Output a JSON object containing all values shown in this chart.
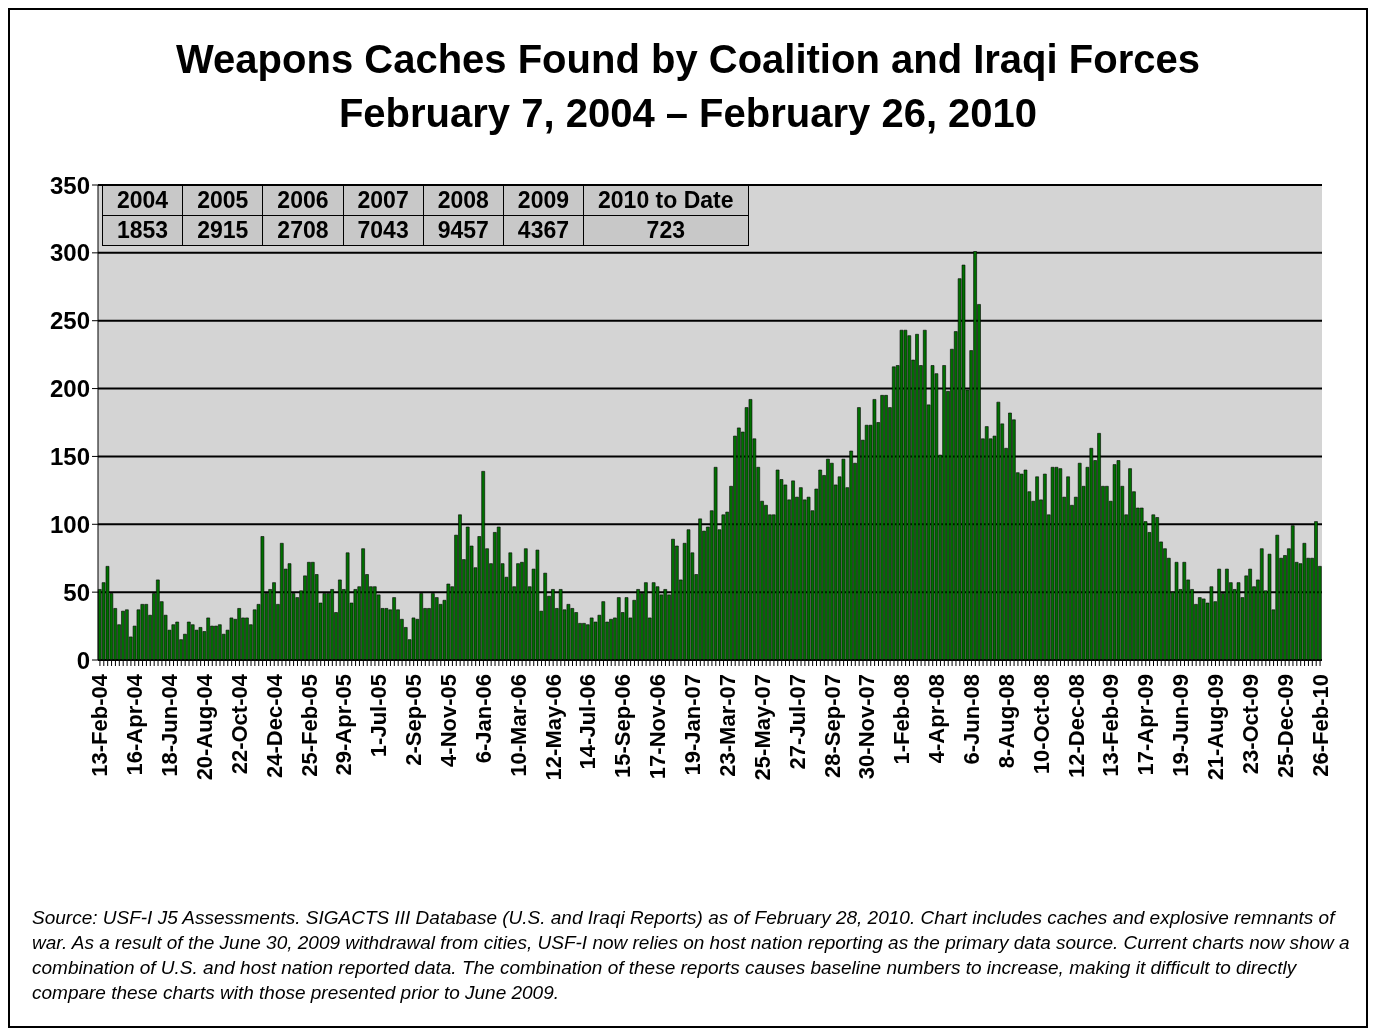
{
  "chart_data": {
    "type": "bar",
    "title": "Weapons Caches Found by Coalition and Iraqi Forces",
    "subtitle": "February 7, 2004 – February 26, 2010",
    "categories": [
      "13-Feb-04",
      null,
      null,
      null,
      null,
      null,
      null,
      null,
      null,
      "16-Apr-04",
      null,
      null,
      null,
      null,
      null,
      null,
      null,
      null,
      "18-Jun-04",
      null,
      null,
      null,
      null,
      null,
      null,
      null,
      null,
      "20-Aug-04",
      null,
      null,
      null,
      null,
      null,
      null,
      null,
      null,
      "22-Oct-04",
      null,
      null,
      null,
      null,
      null,
      null,
      null,
      null,
      "24-Dec-04",
      null,
      null,
      null,
      null,
      null,
      null,
      null,
      null,
      "25-Feb-05",
      null,
      null,
      null,
      null,
      null,
      null,
      null,
      null,
      "29-Apr-05",
      null,
      null,
      null,
      null,
      null,
      null,
      null,
      null,
      "1-Jul-05",
      null,
      null,
      null,
      null,
      null,
      null,
      null,
      null,
      "2-Sep-05",
      null,
      null,
      null,
      null,
      null,
      null,
      null,
      null,
      "4-Nov-05",
      null,
      null,
      null,
      null,
      null,
      null,
      null,
      null,
      "6-Jan-06",
      null,
      null,
      null,
      null,
      null,
      null,
      null,
      null,
      "10-Mar-06",
      null,
      null,
      null,
      null,
      null,
      null,
      null,
      null,
      "12-May-06",
      null,
      null,
      null,
      null,
      null,
      null,
      null,
      null,
      "14-Jul-06",
      null,
      null,
      null,
      null,
      null,
      null,
      null,
      null,
      "15-Sep-06",
      null,
      null,
      null,
      null,
      null,
      null,
      null,
      null,
      "17-Nov-06",
      null,
      null,
      null,
      null,
      null,
      null,
      null,
      null,
      "19-Jan-07",
      null,
      null,
      null,
      null,
      null,
      null,
      null,
      null,
      "23-Mar-07",
      null,
      null,
      null,
      null,
      null,
      null,
      null,
      null,
      "25-May-07",
      null,
      null,
      null,
      null,
      null,
      null,
      null,
      null,
      "27-Jul-07",
      null,
      null,
      null,
      null,
      null,
      null,
      null,
      null,
      "28-Sep-07",
      null,
      null,
      null,
      null,
      null,
      null,
      null,
      null,
      "30-Nov-07",
      null,
      null,
      null,
      null,
      null,
      null,
      null,
      null,
      "1-Feb-08",
      null,
      null,
      null,
      null,
      null,
      null,
      null,
      null,
      "4-Apr-08",
      null,
      null,
      null,
      null,
      null,
      null,
      null,
      null,
      "6-Jun-08",
      null,
      null,
      null,
      null,
      null,
      null,
      null,
      null,
      "8-Aug-08",
      null,
      null,
      null,
      null,
      null,
      null,
      null,
      null,
      "10-Oct-08",
      null,
      null,
      null,
      null,
      null,
      null,
      null,
      null,
      "12-Dec-08",
      null,
      null,
      null,
      null,
      null,
      null,
      null,
      null,
      "13-Feb-09",
      null,
      null,
      null,
      null,
      null,
      null,
      null,
      null,
      "17-Apr-09",
      null,
      null,
      null,
      null,
      null,
      null,
      null,
      null,
      "19-Jun-09",
      null,
      null,
      null,
      null,
      null,
      null,
      null,
      null,
      "21-Aug-09",
      null,
      null,
      null,
      null,
      null,
      null,
      null,
      null,
      "23-Oct-09",
      null,
      null,
      null,
      null,
      null,
      null,
      null,
      null,
      "25-Dec-09",
      null,
      null,
      null,
      null,
      null,
      null,
      null,
      null,
      "26-Feb-10"
    ],
    "values": [
      52,
      57,
      69,
      49,
      38,
      26,
      36,
      37,
      17,
      25,
      37,
      41,
      41,
      33,
      49,
      59,
      43,
      33,
      22,
      26,
      28,
      15,
      19,
      28,
      26,
      22,
      24,
      21,
      31,
      25,
      25,
      26,
      19,
      22,
      31,
      30,
      38,
      31,
      31,
      26,
      37,
      41,
      91,
      49,
      52,
      57,
      41,
      86,
      67,
      71,
      49,
      46,
      51,
      62,
      72,
      72,
      63,
      42,
      49,
      49,
      52,
      35,
      59,
      52,
      79,
      42,
      52,
      54,
      82,
      63,
      54,
      54,
      48,
      38,
      38,
      37,
      46,
      37,
      30,
      24,
      15,
      31,
      30,
      49,
      38,
      38,
      49,
      46,
      41,
      44,
      56,
      54,
      92,
      107,
      74,
      98,
      84,
      68,
      91,
      139,
      82,
      71,
      94,
      98,
      71,
      61,
      79,
      54,
      71,
      72,
      82,
      54,
      67,
      81,
      36,
      64,
      47,
      52,
      38,
      52,
      37,
      41,
      38,
      35,
      27,
      27,
      26,
      31,
      28,
      33,
      43,
      28,
      30,
      31,
      46,
      35,
      46,
      31,
      44,
      52,
      49,
      57,
      31,
      57,
      54,
      48,
      52,
      48,
      89,
      84,
      59,
      86,
      96,
      79,
      63,
      104,
      95,
      98,
      110,
      142,
      96,
      107,
      109,
      128,
      165,
      171,
      168,
      186,
      192,
      163,
      142,
      117,
      114,
      107,
      107,
      140,
      133,
      129,
      118,
      132,
      120,
      127,
      118,
      120,
      110,
      126,
      140,
      136,
      148,
      145,
      129,
      135,
      148,
      127,
      154,
      145,
      186,
      162,
      173,
      173,
      192,
      175,
      195,
      195,
      186,
      216,
      217,
      243,
      243,
      239,
      221,
      240,
      217,
      243,
      188,
      217,
      211,
      151,
      217,
      198,
      229,
      242,
      281,
      291,
      199,
      228,
      301,
      262,
      163,
      172,
      163,
      165,
      190,
      174,
      156,
      182,
      177,
      138,
      137,
      140,
      124,
      117,
      135,
      118,
      137,
      107,
      142,
      142,
      141,
      120,
      135,
      114,
      120,
      145,
      128,
      142,
      156,
      147,
      167,
      128,
      128,
      117,
      144,
      147,
      128,
      107,
      141,
      124,
      112,
      112,
      102,
      94,
      107,
      105,
      87,
      82,
      75,
      50,
      72,
      52,
      72,
      59,
      52,
      41,
      46,
      45,
      42,
      54,
      43,
      67,
      49,
      67,
      57,
      52,
      57,
      46,
      62,
      67,
      54,
      59,
      82,
      51,
      78,
      37,
      92,
      75,
      77,
      82,
      99,
      72,
      71,
      86,
      75,
      75,
      102,
      69
    ],
    "color": "#007000",
    "ylim": [
      0,
      350
    ],
    "yticks": [
      0,
      50,
      100,
      150,
      200,
      250,
      300,
      350
    ],
    "grid": "y",
    "legend": false,
    "annotations": [
      "2004",
      "2005",
      "2006",
      "2007",
      "2008",
      "2009",
      "2010 to Date",
      "1853",
      "2915",
      "2708",
      "7043",
      "9457",
      "4367",
      "723",
      "Source:  USF-I J5 Assessments.  SIGACTS III Database (U.S. and Iraqi Reports) as of February 28, 2010.  Chart includes caches and explosive remnants of war. As a result of the June 30, 2009 withdrawal from cities, USF-I now relies on host nation reporting as the primary data source. Current charts now show a combination of U.S. and host nation reported data.  The combination of these reports causes baseline numbers to increase, making it difficult to directly compare these charts with those presented prior to June 2009."
    ]
  }
}
